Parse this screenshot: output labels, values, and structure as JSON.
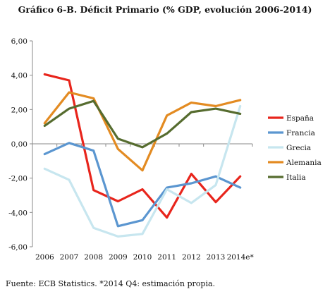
{
  "chart_data": {
    "type": "line",
    "title": "Gráfico 6-B. Déficit Primario (% GDP, evolución 2006-2014)",
    "categories": [
      "2006",
      "2007",
      "2008",
      "2009",
      "2010",
      "2011",
      "2012",
      "2013",
      "2014e*"
    ],
    "ylim": [
      -6,
      6
    ],
    "yticks": [
      "6,00",
      "4,00",
      "2,00",
      "0,00",
      "-2,00",
      "-4,00",
      "-6,00"
    ],
    "ytick_values": [
      6,
      4,
      2,
      0,
      -2,
      -4,
      -6
    ],
    "grid": false,
    "legend_position": "right",
    "series": [
      {
        "name": "España",
        "color": "#e8251c",
        "values": [
          4.05,
          3.7,
          -2.7,
          -3.35,
          -2.65,
          -4.3,
          -1.75,
          -3.4,
          -1.9
        ]
      },
      {
        "name": "Francia",
        "color": "#5b96d0",
        "values": [
          -0.6,
          0.05,
          -0.4,
          -4.8,
          -4.45,
          -2.55,
          -2.3,
          -1.9,
          -2.55
        ]
      },
      {
        "name": "Grecia",
        "color": "#c7e6ef",
        "values": [
          -1.45,
          -2.1,
          -4.9,
          -5.4,
          -5.25,
          -2.65,
          -3.45,
          -2.4,
          2.2
        ]
      },
      {
        "name": "Alemania",
        "color": "#e38b22",
        "values": [
          1.2,
          3.0,
          2.65,
          -0.3,
          -1.55,
          1.65,
          2.4,
          2.2,
          2.55
        ]
      },
      {
        "name": "Italia",
        "color": "#566c2f",
        "values": [
          1.05,
          2.05,
          2.5,
          0.3,
          -0.2,
          0.6,
          1.85,
          2.05,
          1.75
        ]
      }
    ]
  },
  "footer": {
    "source": "Fuente: ECB Statistics. *2014 Q4: estimación propia."
  }
}
